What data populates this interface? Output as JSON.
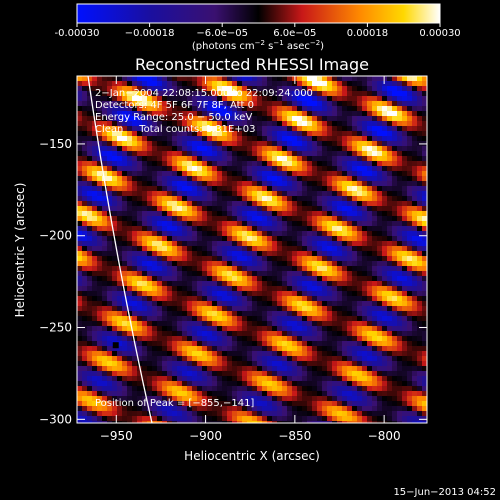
{
  "chart_data": {
    "type": "heatmap",
    "title": "Reconstructed RHESSI Image",
    "xlabel": "Heliocentric X (arcsec)",
    "ylabel": "Heliocentric Y (arcsec)",
    "xlim": [
      -972,
      -776
    ],
    "ylim": [
      -302,
      -113
    ],
    "x_ticks": [
      -950,
      -900,
      -850,
      -800
    ],
    "x_tick_labels": [
      "−950",
      "−900",
      "−850",
      "−800"
    ],
    "y_ticks": [
      -150,
      -200,
      -250,
      -300
    ],
    "y_tick_labels": [
      "−150",
      "−200",
      "−250",
      "−300"
    ],
    "colorbar": {
      "range": [
        -0.0003,
        0.0003
      ],
      "ticks": [
        -0.0003,
        -0.00018,
        -6e-05,
        6e-05,
        0.00018,
        0.0003
      ],
      "tick_labels": [
        "-0.00030",
        "−0.00018",
        "−6.0e−05",
        "6.0e−05",
        "0.00018",
        "0.00030"
      ],
      "unit_parts": [
        "(photons cm",
        "−2",
        " s",
        "−1",
        " asec",
        "−2",
        ")"
      ]
    },
    "annotations": [
      "2−Jan−2004 22:08:15.000 to 22:09:24.000",
      "Detectors: 4F 5F 6F 7F 8F, Att 0",
      "Energy Range: 25.0 − 50.0 keV",
      "Clean     Total counts: 1.31E+03"
    ],
    "peak_label": "Position of Peak = [−855,−141]",
    "peak": [
      -855,
      -141
    ],
    "pattern": {
      "description": "diagonal fringe stripes running from upper-left to lower-right",
      "amplitude": 0.0003
    },
    "limb": "solar limb curve near left edge"
  },
  "footer": {
    "date": "15−Jun−2013 04:52"
  }
}
